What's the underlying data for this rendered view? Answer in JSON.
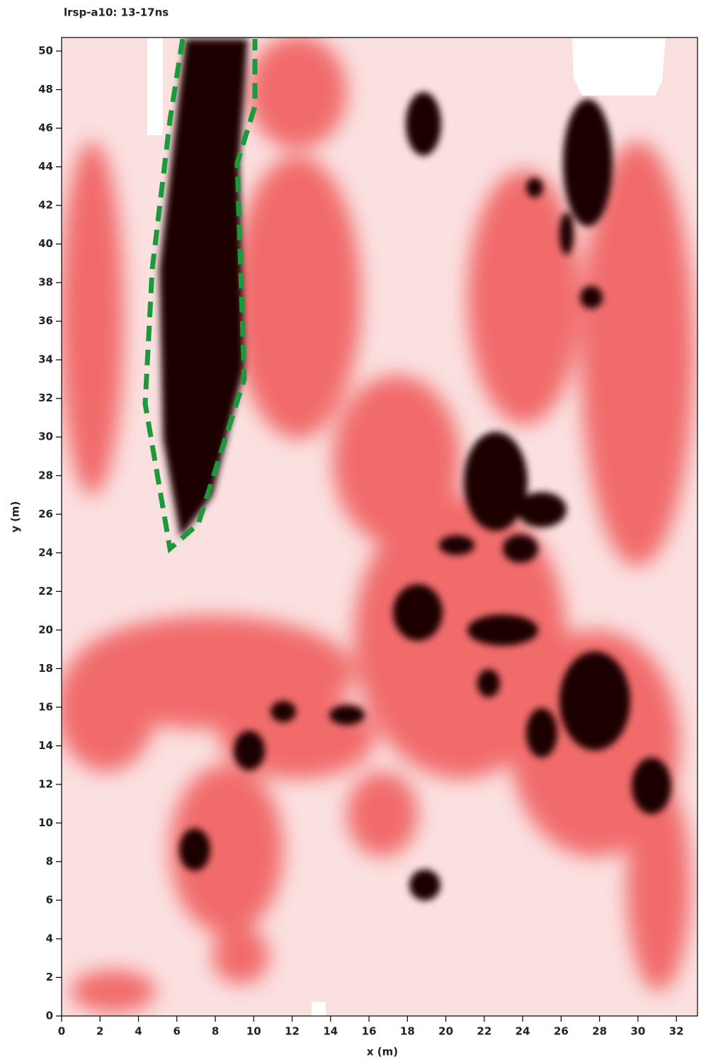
{
  "chart_data": {
    "type": "heatmap",
    "title": "lrsp-a10: 13-17ns",
    "x_label": "x (m)",
    "y_label": "y (m)",
    "xlim": [
      0,
      33.1
    ],
    "ylim": [
      0,
      50.7
    ],
    "xticks": [
      0,
      2,
      4,
      6,
      8,
      10,
      12,
      14,
      16,
      18,
      20,
      22,
      24,
      26,
      28,
      30,
      32
    ],
    "yticks": [
      0,
      2,
      4,
      6,
      8,
      10,
      12,
      14,
      16,
      18,
      20,
      22,
      24,
      26,
      28,
      30,
      32,
      34,
      36,
      38,
      40,
      42,
      44,
      46,
      48,
      50
    ],
    "grid": false
  }
}
